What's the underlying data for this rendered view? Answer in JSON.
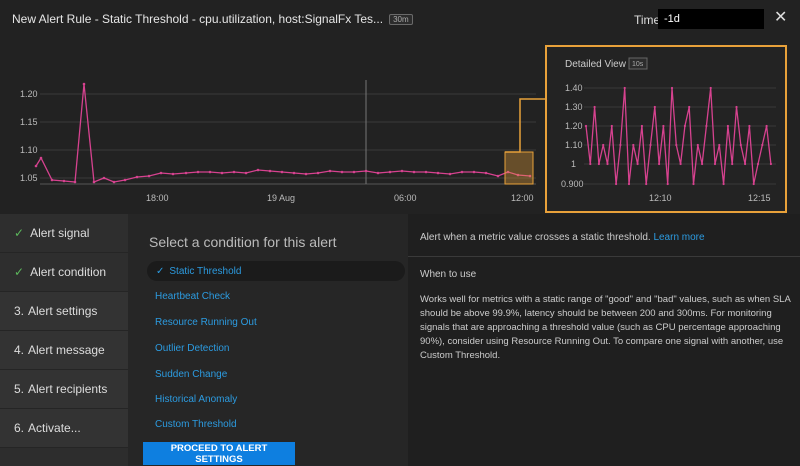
{
  "header": {
    "title": "New Alert Rule - Static Threshold - cpu.utilization, host:SignalFx Tes...",
    "badge": "30m",
    "time_label": "Time",
    "time_value": "-1d",
    "close_icon": "close-icon"
  },
  "main_chart": {
    "y_ticks": [
      "1.20",
      "1.15",
      "1.10",
      "1.05"
    ],
    "x_ticks": [
      "18:00",
      "19 Aug",
      "06:00",
      "12:00"
    ],
    "line_color": "#d6428f",
    "highlight_color": "#e8a13a"
  },
  "detail_chart": {
    "title": "Detailed View",
    "badge": "10s",
    "y_ticks": [
      "1.40",
      "1.30",
      "1.20",
      "1.10",
      "1",
      "0.900"
    ],
    "x_ticks": [
      "12:10",
      "12:15"
    ],
    "border_color": "#e8a13a"
  },
  "steps": [
    {
      "label": "Alert signal",
      "done": true
    },
    {
      "label": "Alert condition",
      "done": true
    },
    {
      "num": "3.",
      "label": "Alert settings"
    },
    {
      "num": "4.",
      "label": "Alert message"
    },
    {
      "num": "5.",
      "label": "Alert recipients"
    },
    {
      "num": "6.",
      "label": "Activate..."
    }
  ],
  "conditions": {
    "heading": "Select a condition for this alert",
    "items": [
      "Static Threshold",
      "Heartbeat Check",
      "Resource Running Out",
      "Outlier Detection",
      "Sudden Change",
      "Historical Anomaly",
      "Custom Threshold"
    ],
    "selected": "Static Threshold",
    "proceed": "PROCEED TO ALERT SETTINGS"
  },
  "description": {
    "summary": "Alert when a metric value crosses a static threshold.",
    "learn_more": "Learn more",
    "when_heading": "When to use",
    "body": "Works well for metrics with a static range of \"good\" and \"bad\" values, such as when SLA should be above 99.9%, latency should be between 200 and 300ms. For monitoring signals that are approaching a threshold value (such as CPU percentage approaching 90%), consider using Resource Running Out. To compare one signal with another, use Custom Threshold."
  },
  "colors": {
    "accent": "#2c9be0",
    "button": "#0e7fe0",
    "check": "#5cb85c"
  }
}
